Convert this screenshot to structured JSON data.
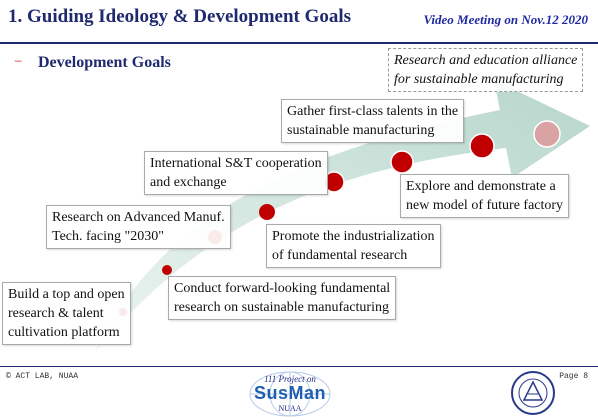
{
  "header": {
    "title": "1. Guiding Ideology & Development Goals",
    "meeting": "Video Meeting on Nov.12 2020"
  },
  "section": {
    "bullet": "−",
    "subtitle": "Development Goals"
  },
  "goals": [
    {
      "line1": "Build a top and open",
      "line2": "research & talent",
      "line3": "cultivation platform"
    },
    {
      "line1": "Conduct forward-looking fundamental",
      "line2": "research on sustainable manufacturing"
    },
    {
      "line1": "Research on Advanced Manuf.",
      "line2": "Tech. facing \"2030\""
    },
    {
      "line1": "Promote the industrialization",
      "line2": "of fundamental research"
    },
    {
      "line1": "International S&T cooperation",
      "line2": "and exchange"
    },
    {
      "line1": "Explore and demonstrate a",
      "line2": "new model of future factory"
    },
    {
      "line1": "Gather first-class talents in the",
      "line2": "sustainable manufacturing"
    },
    {
      "line1": "Research and education alliance",
      "line2": "for sustainable manufacturing"
    }
  ],
  "colors": {
    "title": "#1f2a6e",
    "accent_red": "#c00000",
    "arrow": "#c8dfd8",
    "last_dot": "#d9a3a3"
  },
  "footer": {
    "left": "© ACT LAB, NUAA",
    "page": "Page 8"
  },
  "logo": {
    "line1": "111 Project on",
    "name": "SusMan",
    "line3": "NUAA"
  }
}
